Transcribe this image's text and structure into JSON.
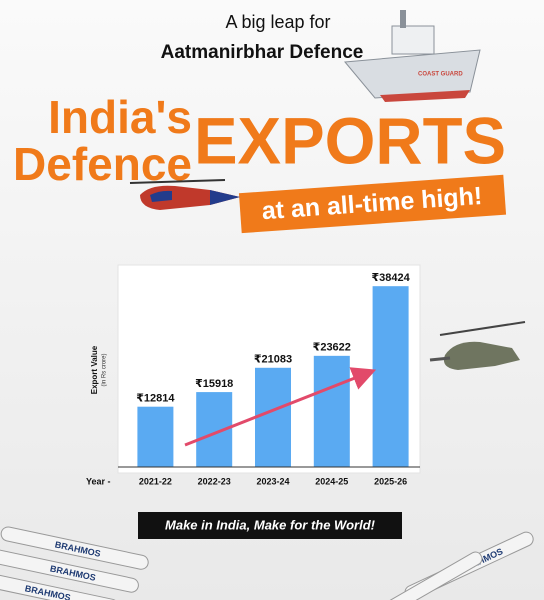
{
  "header": {
    "kicker": "A big leap for",
    "subtitle": "Aatmanirbhar Defence",
    "title_line1": "India's",
    "title_line2": "Defence",
    "title_big": "EXPORTS",
    "banner": "at an all-time high!",
    "ship_label": "COAST GUARD"
  },
  "chart_data": {
    "type": "bar",
    "y_label": "Export Value",
    "y_label_unit": "(in Rs crore)",
    "x_label": "Year -",
    "categories": [
      "2021-22",
      "2022-23",
      "2023-24",
      "2024-25",
      "2025-26"
    ],
    "values": [
      12814,
      15918,
      21083,
      23622,
      38424
    ],
    "value_labels": [
      "₹12814",
      "₹15918",
      "₹21083",
      "₹23622",
      "₹38424"
    ],
    "color": "#5aaaf2",
    "ylim": [
      0,
      42500
    ]
  },
  "footer": {
    "slogan": "Make in India, Make for the World!",
    "missile_labels": [
      "BRAHMOS",
      "BRAHMOS",
      "BRAHMOS",
      "BRAHMOS"
    ]
  }
}
